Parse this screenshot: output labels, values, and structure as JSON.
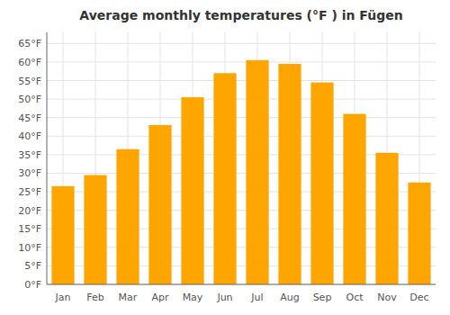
{
  "chart_data": {
    "type": "bar",
    "title": "Average monthly temperatures (°F ) in Fügen",
    "categories": [
      "Jan",
      "Feb",
      "Mar",
      "Apr",
      "May",
      "Jun",
      "Jul",
      "Aug",
      "Sep",
      "Oct",
      "Nov",
      "Dec"
    ],
    "values": [
      26.5,
      29.5,
      36.5,
      43.0,
      50.5,
      57.0,
      60.5,
      59.5,
      54.5,
      46.0,
      35.5,
      27.5
    ],
    "color": "#FFA500",
    "ylim": [
      0,
      68
    ],
    "yticks": [
      {
        "value": 0,
        "label": "0°F"
      },
      {
        "value": 5,
        "label": "5°F"
      },
      {
        "value": 10,
        "label": "10°F"
      },
      {
        "value": 15,
        "label": "15°F"
      },
      {
        "value": 20,
        "label": "20°F"
      },
      {
        "value": 25,
        "label": "25°F"
      },
      {
        "value": 30,
        "label": "30°F"
      },
      {
        "value": 35,
        "label": "35°F"
      },
      {
        "value": 40,
        "label": "40°F"
      },
      {
        "value": 45,
        "label": "45°F"
      },
      {
        "value": 50,
        "label": "50°F"
      },
      {
        "value": 55,
        "label": "55°F"
      },
      {
        "value": 60,
        "label": "60°F"
      },
      {
        "value": 65,
        "label": "65°F"
      }
    ],
    "grid": true
  }
}
